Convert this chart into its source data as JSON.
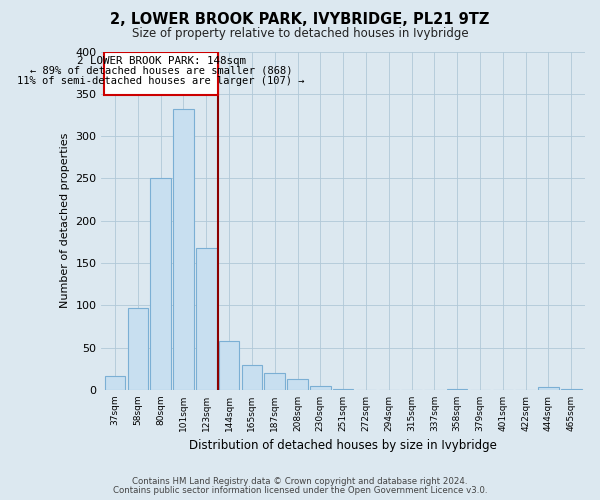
{
  "title": "2, LOWER BROOK PARK, IVYBRIDGE, PL21 9TZ",
  "subtitle": "Size of property relative to detached houses in Ivybridge",
  "xlabel": "Distribution of detached houses by size in Ivybridge",
  "ylabel": "Number of detached properties",
  "bar_labels": [
    "37sqm",
    "58sqm",
    "80sqm",
    "101sqm",
    "123sqm",
    "144sqm",
    "165sqm",
    "187sqm",
    "208sqm",
    "230sqm",
    "251sqm",
    "272sqm",
    "294sqm",
    "315sqm",
    "337sqm",
    "358sqm",
    "379sqm",
    "401sqm",
    "422sqm",
    "444sqm",
    "465sqm"
  ],
  "bar_values": [
    17,
    97,
    251,
    332,
    168,
    58,
    30,
    20,
    13,
    5,
    1,
    0,
    0,
    0,
    0,
    1,
    0,
    0,
    0,
    4,
    1
  ],
  "bar_color": "#c8dff0",
  "bar_edge_color": "#7bafd4",
  "property_line_label": "2 LOWER BROOK PARK: 148sqm",
  "annotation_line1": "← 89% of detached houses are smaller (868)",
  "annotation_line2": "11% of semi-detached houses are larger (107) →",
  "vline_color": "#8b0000",
  "ylim": [
    0,
    400
  ],
  "yticks": [
    0,
    50,
    100,
    150,
    200,
    250,
    300,
    350,
    400
  ],
  "footer1": "Contains HM Land Registry data © Crown copyright and database right 2024.",
  "footer2": "Contains public sector information licensed under the Open Government Licence v3.0.",
  "bg_color": "#dce8f0",
  "plot_bg_color": "#dce8f0"
}
